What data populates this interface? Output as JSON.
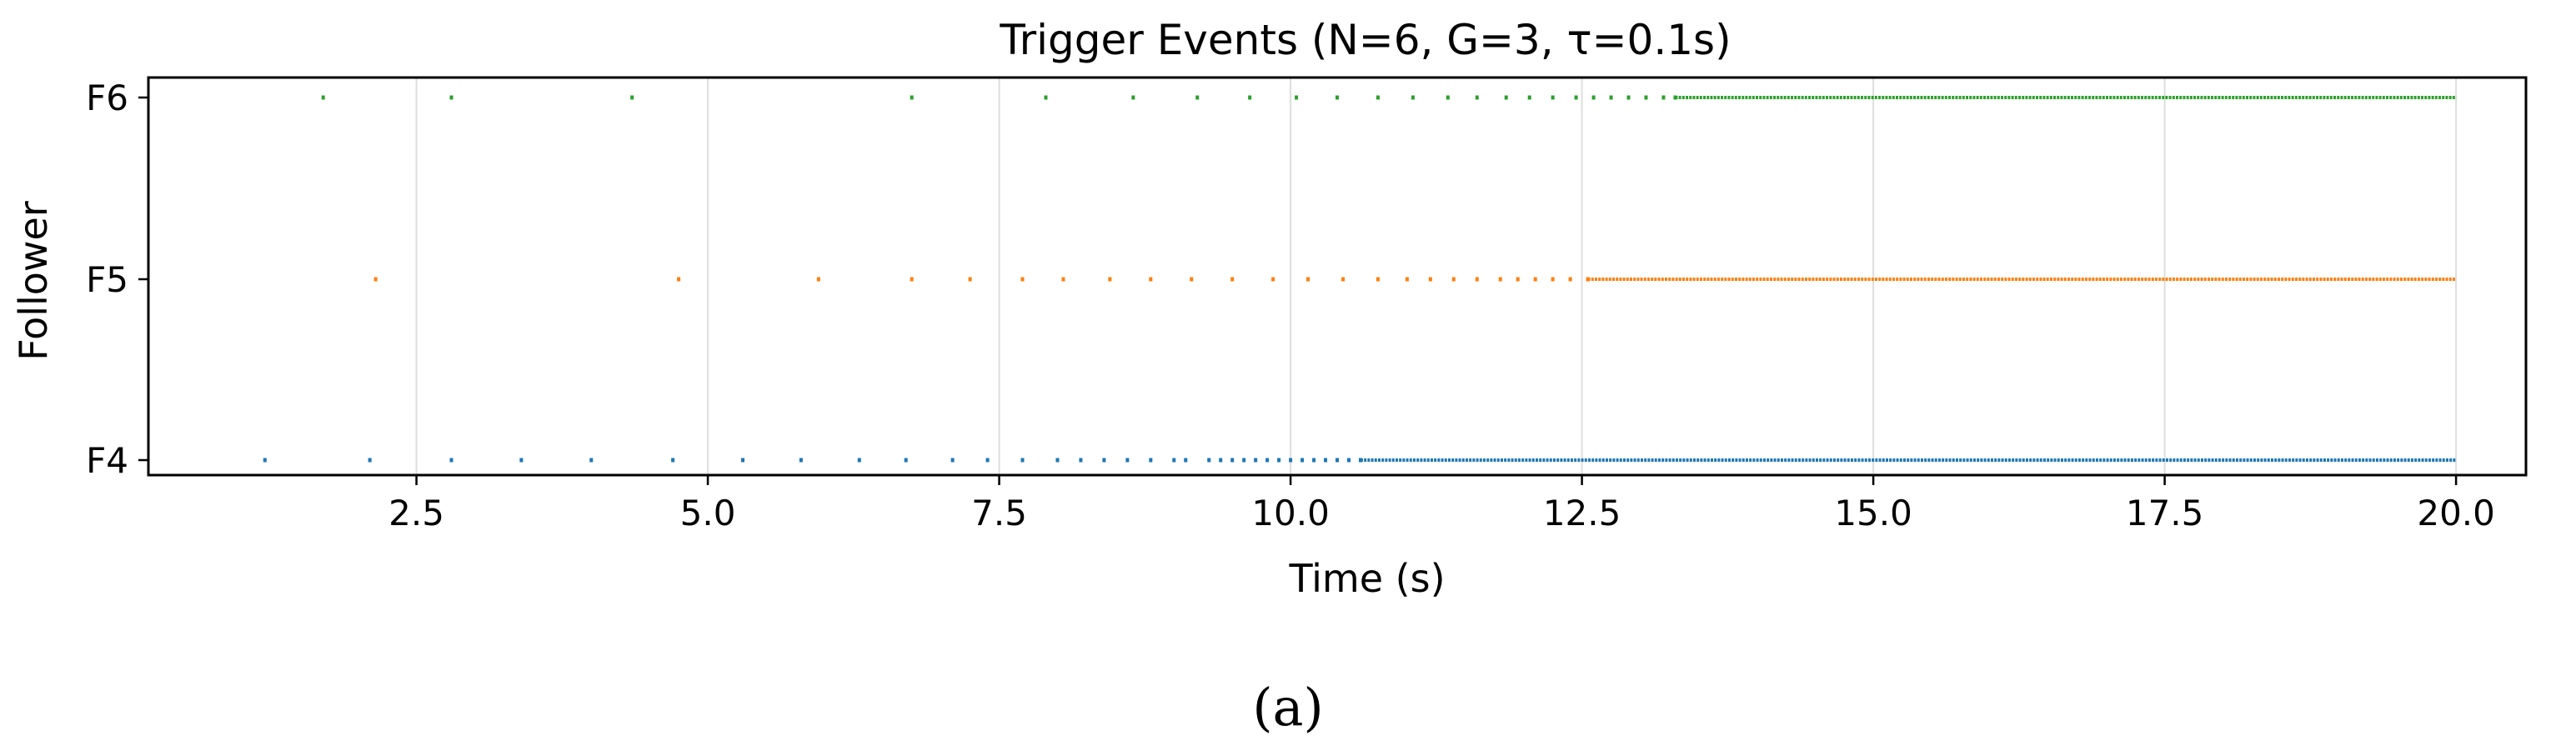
{
  "chart_data": {
    "type": "scatter",
    "title": "Trigger Events (N=6, G=3, τ=0.1s)",
    "xlabel": "Time (s)",
    "ylabel": "Follower",
    "xlim": [
      0.2,
      20.6
    ],
    "x_ticks": [
      2.5,
      5.0,
      7.5,
      10.0,
      12.5,
      15.0,
      17.5,
      20.0
    ],
    "x_tick_labels": [
      "2.5",
      "5.0",
      "7.5",
      "10.0",
      "12.5",
      "15.0",
      "17.5",
      "20.0"
    ],
    "categories": [
      "F4",
      "F5",
      "F6"
    ],
    "grid": "vertical",
    "legend": "none",
    "series": [
      {
        "category": "F4",
        "color": "#1f77b4",
        "x": [
          1.2,
          2.1,
          2.8,
          3.4,
          4.0,
          4.7,
          5.3,
          5.8,
          6.3,
          6.7,
          7.1,
          7.4,
          7.7,
          8.0,
          8.2,
          8.4,
          8.6,
          8.8,
          9.0,
          9.1,
          9.3,
          9.4,
          9.5,
          9.6,
          9.7,
          9.8,
          9.9,
          10.0,
          10.1,
          10.2,
          10.3,
          10.4,
          10.5,
          10.6
        ]
      },
      {
        "category": "F5",
        "color": "#ff7f0e",
        "x": [
          2.15,
          4.75,
          5.95,
          6.75,
          7.25,
          7.7,
          8.05,
          8.45,
          8.8,
          9.15,
          9.5,
          9.85,
          10.15,
          10.45,
          10.75,
          11.0,
          11.2,
          11.4,
          11.6,
          11.8,
          11.95,
          12.1,
          12.25,
          12.4,
          12.55
        ]
      },
      {
        "category": "F6",
        "color": "#2ca02c",
        "x": [
          1.7,
          2.8,
          4.35,
          6.75,
          7.9,
          8.65,
          9.2,
          9.65,
          10.05,
          10.4,
          10.75,
          11.05,
          11.35,
          11.6,
          11.85,
          12.05,
          12.25,
          12.45,
          12.6,
          12.75,
          12.9,
          13.05,
          13.2,
          13.3
        ]
      }
    ],
    "dense_segments": [
      {
        "category": "F4",
        "color": "#1f77b4",
        "x_range": [
          10.6,
          20.0
        ]
      },
      {
        "category": "F5",
        "color": "#ff7f0e",
        "x_range": [
          12.55,
          20.0
        ]
      },
      {
        "category": "F6",
        "color": "#2ca02c",
        "x_range": [
          13.3,
          20.0
        ]
      }
    ]
  },
  "caption": "(a)"
}
